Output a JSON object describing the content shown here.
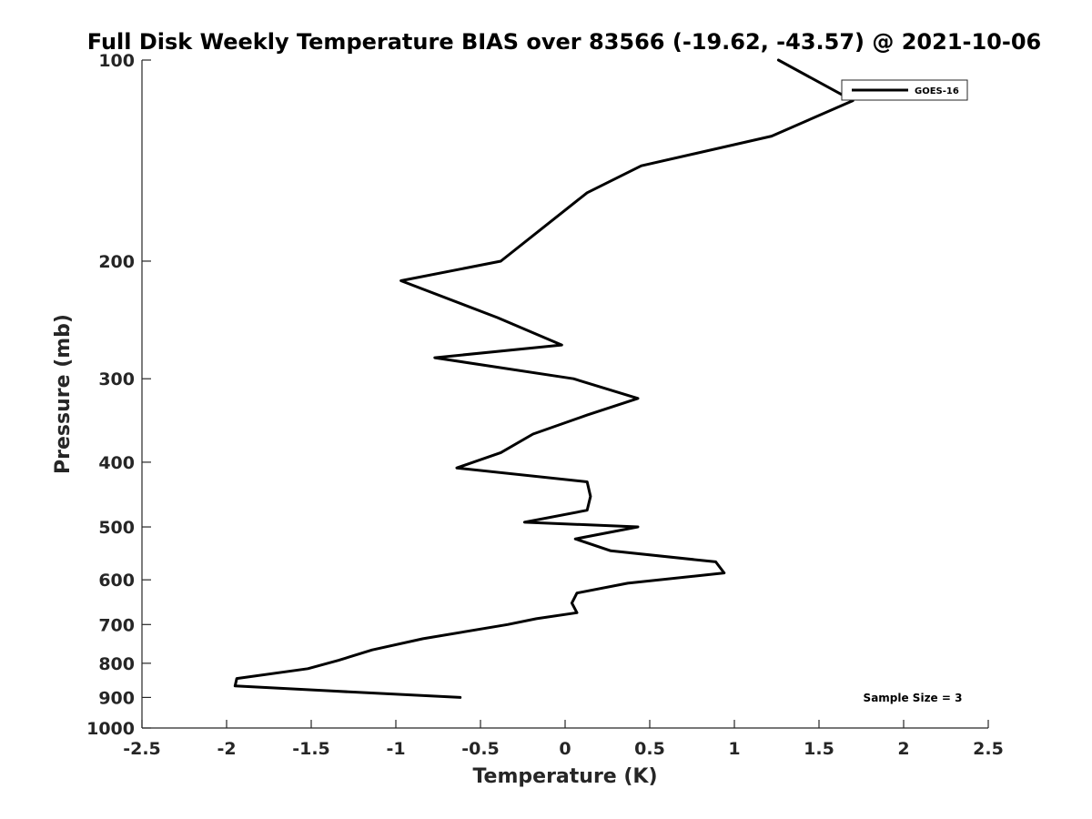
{
  "chart_data": {
    "type": "line",
    "title": "Full Disk Weekly Temperature BIAS over 83566 (-19.62, -43.57) @ 2021-10-06",
    "xlabel": "Temperature (K)",
    "ylabel": "Pressure (mb)",
    "xlim": [
      -2.5,
      2.5
    ],
    "ylim": [
      100,
      1000
    ],
    "yscale": "log",
    "yreversed": true,
    "xticks": [
      -2.5,
      -2,
      -1.5,
      -1,
      -0.5,
      0,
      0.5,
      1,
      1.5,
      2,
      2.5
    ],
    "xtick_labels": [
      "-2.5",
      "-2",
      "-1.5",
      "-1",
      "-0.5",
      "0",
      "0.5",
      "1",
      "1.5",
      "2",
      "2.5"
    ],
    "yticks": [
      100,
      200,
      300,
      400,
      500,
      600,
      700,
      800,
      900,
      1000
    ],
    "ytick_labels": [
      "100",
      "200",
      "300",
      "400",
      "500",
      "600",
      "700",
      "800",
      "900",
      "1000"
    ],
    "grid": false,
    "legend_position": "top-right",
    "annotation": "Sample Size = 3",
    "series": [
      {
        "name": "GOES-16",
        "color": "#000000",
        "points": [
          [
            1.26,
            100
          ],
          [
            1.7,
            115
          ],
          [
            1.22,
            130
          ],
          [
            0.45,
            144
          ],
          [
            0.13,
            158
          ],
          [
            -0.38,
            200
          ],
          [
            -0.97,
            214
          ],
          [
            -0.4,
            243
          ],
          [
            -0.02,
            267
          ],
          [
            -0.77,
            279
          ],
          [
            0.05,
            300
          ],
          [
            0.43,
            321
          ],
          [
            0.13,
            340
          ],
          [
            -0.19,
            363
          ],
          [
            -0.38,
            387
          ],
          [
            -0.64,
            408
          ],
          [
            0.13,
            428
          ],
          [
            0.15,
            450
          ],
          [
            0.13,
            472
          ],
          [
            -0.24,
            492
          ],
          [
            0.43,
            500
          ],
          [
            0.06,
            521
          ],
          [
            0.27,
            543
          ],
          [
            0.89,
            564
          ],
          [
            0.94,
            586
          ],
          [
            0.37,
            607
          ],
          [
            0.07,
            628
          ],
          [
            0.04,
            650
          ],
          [
            0.07,
            672
          ],
          [
            -0.17,
            686
          ],
          [
            -0.34,
            700
          ],
          [
            -0.84,
            735
          ],
          [
            -1.14,
            764
          ],
          [
            -1.34,
            792
          ],
          [
            -1.52,
            815
          ],
          [
            -1.94,
            843
          ],
          [
            -1.95,
            865
          ],
          [
            -1.38,
            880
          ],
          [
            -0.62,
            900
          ]
        ]
      }
    ]
  }
}
